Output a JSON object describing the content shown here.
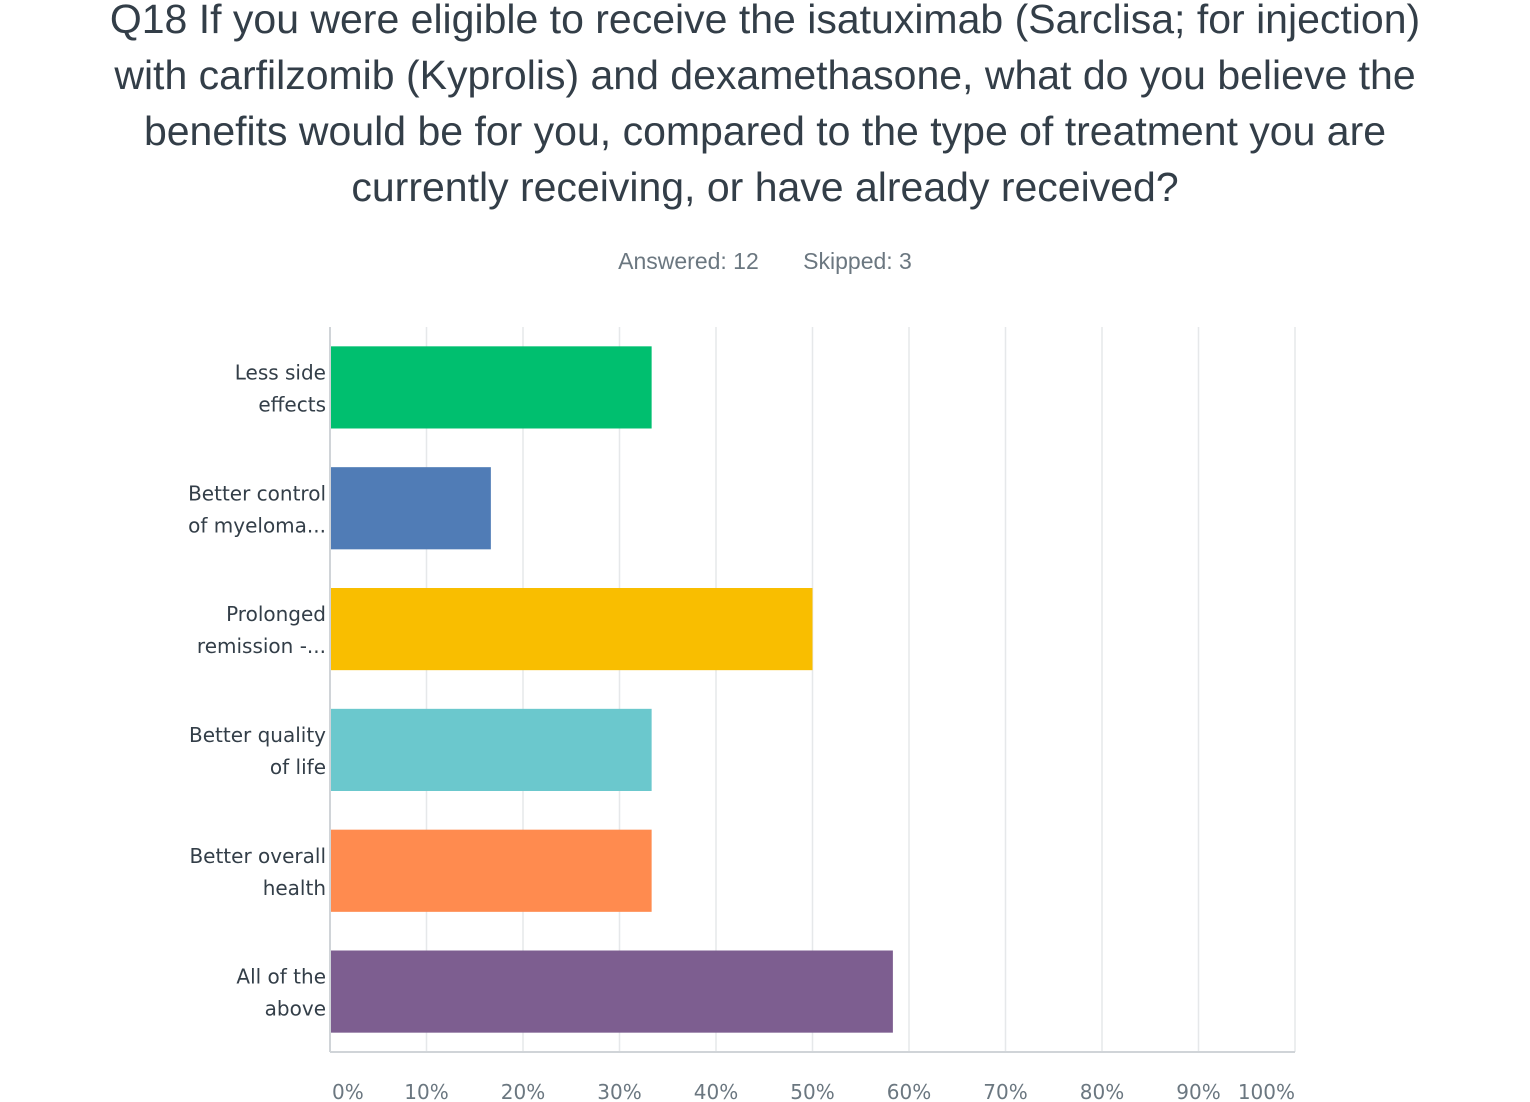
{
  "question": {
    "lines": [
      "Q18 If you were eligible to receive the isatuximab (Sarclisa; for injection)",
      "with carfilzomib (Kyprolis) and dexamethasone, what do you believe the",
      "benefits would be for you, compared to the type of treatment you are",
      "currently receiving, or have already received?"
    ]
  },
  "summary": {
    "answered": "Answered: 12",
    "skipped": "Skipped: 3"
  },
  "chart_data": {
    "type": "bar",
    "orientation": "horizontal",
    "categories": [
      [
        "Less side",
        "effects"
      ],
      [
        "Better control",
        "of myeloma..."
      ],
      [
        "Prolonged",
        "remission -..."
      ],
      [
        "Better quality",
        "of life"
      ],
      [
        "Better overall",
        "health"
      ],
      [
        "All of the",
        "above"
      ]
    ],
    "values": [
      33.33,
      16.67,
      50.0,
      33.33,
      33.33,
      58.33
    ],
    "colors": [
      "#00bf6f",
      "#507cb6",
      "#f9be00",
      "#6bc8cd",
      "#ff8b4f",
      "#7d5e90"
    ],
    "xlim": [
      0,
      100
    ],
    "xticks": [
      "0%",
      "10%",
      "20%",
      "30%",
      "40%",
      "50%",
      "60%",
      "70%",
      "80%",
      "90%",
      "100%"
    ],
    "grid": true
  }
}
